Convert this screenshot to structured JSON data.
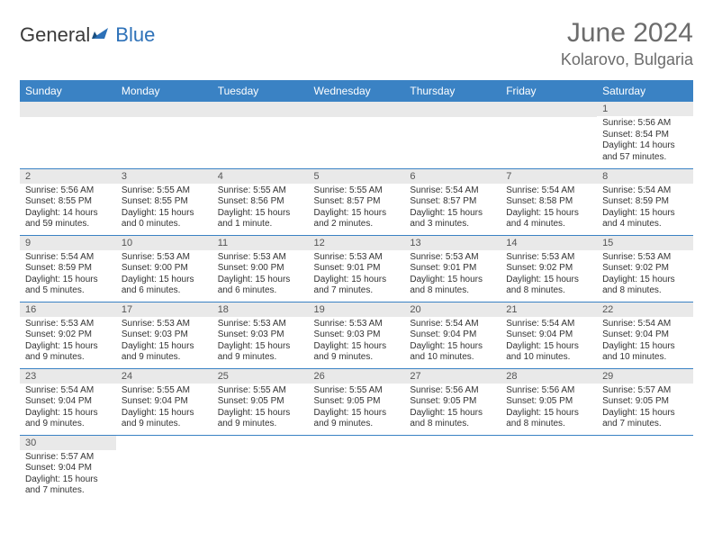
{
  "brand": {
    "part1": "General",
    "part2": "Blue"
  },
  "title": "June 2024",
  "location": "Kolarovo, Bulgaria",
  "colors": {
    "header_bg": "#3a82c4",
    "header_fg": "#ffffff",
    "daynum_bg": "#e9e9e9",
    "border": "#3a82c4",
    "title_color": "#6c6c6c",
    "logo_blue": "#2d71b8"
  },
  "weekdays": [
    "Sunday",
    "Monday",
    "Tuesday",
    "Wednesday",
    "Thursday",
    "Friday",
    "Saturday"
  ],
  "weeks": [
    [
      {
        "n": "",
        "sr": "",
        "ss": "",
        "dl": ""
      },
      {
        "n": "",
        "sr": "",
        "ss": "",
        "dl": ""
      },
      {
        "n": "",
        "sr": "",
        "ss": "",
        "dl": ""
      },
      {
        "n": "",
        "sr": "",
        "ss": "",
        "dl": ""
      },
      {
        "n": "",
        "sr": "",
        "ss": "",
        "dl": ""
      },
      {
        "n": "",
        "sr": "",
        "ss": "",
        "dl": ""
      },
      {
        "n": "1",
        "sr": "Sunrise: 5:56 AM",
        "ss": "Sunset: 8:54 PM",
        "dl": "Daylight: 14 hours and 57 minutes."
      }
    ],
    [
      {
        "n": "2",
        "sr": "Sunrise: 5:56 AM",
        "ss": "Sunset: 8:55 PM",
        "dl": "Daylight: 14 hours and 59 minutes."
      },
      {
        "n": "3",
        "sr": "Sunrise: 5:55 AM",
        "ss": "Sunset: 8:55 PM",
        "dl": "Daylight: 15 hours and 0 minutes."
      },
      {
        "n": "4",
        "sr": "Sunrise: 5:55 AM",
        "ss": "Sunset: 8:56 PM",
        "dl": "Daylight: 15 hours and 1 minute."
      },
      {
        "n": "5",
        "sr": "Sunrise: 5:55 AM",
        "ss": "Sunset: 8:57 PM",
        "dl": "Daylight: 15 hours and 2 minutes."
      },
      {
        "n": "6",
        "sr": "Sunrise: 5:54 AM",
        "ss": "Sunset: 8:57 PM",
        "dl": "Daylight: 15 hours and 3 minutes."
      },
      {
        "n": "7",
        "sr": "Sunrise: 5:54 AM",
        "ss": "Sunset: 8:58 PM",
        "dl": "Daylight: 15 hours and 4 minutes."
      },
      {
        "n": "8",
        "sr": "Sunrise: 5:54 AM",
        "ss": "Sunset: 8:59 PM",
        "dl": "Daylight: 15 hours and 4 minutes."
      }
    ],
    [
      {
        "n": "9",
        "sr": "Sunrise: 5:54 AM",
        "ss": "Sunset: 8:59 PM",
        "dl": "Daylight: 15 hours and 5 minutes."
      },
      {
        "n": "10",
        "sr": "Sunrise: 5:53 AM",
        "ss": "Sunset: 9:00 PM",
        "dl": "Daylight: 15 hours and 6 minutes."
      },
      {
        "n": "11",
        "sr": "Sunrise: 5:53 AM",
        "ss": "Sunset: 9:00 PM",
        "dl": "Daylight: 15 hours and 6 minutes."
      },
      {
        "n": "12",
        "sr": "Sunrise: 5:53 AM",
        "ss": "Sunset: 9:01 PM",
        "dl": "Daylight: 15 hours and 7 minutes."
      },
      {
        "n": "13",
        "sr": "Sunrise: 5:53 AM",
        "ss": "Sunset: 9:01 PM",
        "dl": "Daylight: 15 hours and 8 minutes."
      },
      {
        "n": "14",
        "sr": "Sunrise: 5:53 AM",
        "ss": "Sunset: 9:02 PM",
        "dl": "Daylight: 15 hours and 8 minutes."
      },
      {
        "n": "15",
        "sr": "Sunrise: 5:53 AM",
        "ss": "Sunset: 9:02 PM",
        "dl": "Daylight: 15 hours and 8 minutes."
      }
    ],
    [
      {
        "n": "16",
        "sr": "Sunrise: 5:53 AM",
        "ss": "Sunset: 9:02 PM",
        "dl": "Daylight: 15 hours and 9 minutes."
      },
      {
        "n": "17",
        "sr": "Sunrise: 5:53 AM",
        "ss": "Sunset: 9:03 PM",
        "dl": "Daylight: 15 hours and 9 minutes."
      },
      {
        "n": "18",
        "sr": "Sunrise: 5:53 AM",
        "ss": "Sunset: 9:03 PM",
        "dl": "Daylight: 15 hours and 9 minutes."
      },
      {
        "n": "19",
        "sr": "Sunrise: 5:53 AM",
        "ss": "Sunset: 9:03 PM",
        "dl": "Daylight: 15 hours and 9 minutes."
      },
      {
        "n": "20",
        "sr": "Sunrise: 5:54 AM",
        "ss": "Sunset: 9:04 PM",
        "dl": "Daylight: 15 hours and 10 minutes."
      },
      {
        "n": "21",
        "sr": "Sunrise: 5:54 AM",
        "ss": "Sunset: 9:04 PM",
        "dl": "Daylight: 15 hours and 10 minutes."
      },
      {
        "n": "22",
        "sr": "Sunrise: 5:54 AM",
        "ss": "Sunset: 9:04 PM",
        "dl": "Daylight: 15 hours and 10 minutes."
      }
    ],
    [
      {
        "n": "23",
        "sr": "Sunrise: 5:54 AM",
        "ss": "Sunset: 9:04 PM",
        "dl": "Daylight: 15 hours and 9 minutes."
      },
      {
        "n": "24",
        "sr": "Sunrise: 5:55 AM",
        "ss": "Sunset: 9:04 PM",
        "dl": "Daylight: 15 hours and 9 minutes."
      },
      {
        "n": "25",
        "sr": "Sunrise: 5:55 AM",
        "ss": "Sunset: 9:05 PM",
        "dl": "Daylight: 15 hours and 9 minutes."
      },
      {
        "n": "26",
        "sr": "Sunrise: 5:55 AM",
        "ss": "Sunset: 9:05 PM",
        "dl": "Daylight: 15 hours and 9 minutes."
      },
      {
        "n": "27",
        "sr": "Sunrise: 5:56 AM",
        "ss": "Sunset: 9:05 PM",
        "dl": "Daylight: 15 hours and 8 minutes."
      },
      {
        "n": "28",
        "sr": "Sunrise: 5:56 AM",
        "ss": "Sunset: 9:05 PM",
        "dl": "Daylight: 15 hours and 8 minutes."
      },
      {
        "n": "29",
        "sr": "Sunrise: 5:57 AM",
        "ss": "Sunset: 9:05 PM",
        "dl": "Daylight: 15 hours and 7 minutes."
      }
    ],
    [
      {
        "n": "30",
        "sr": "Sunrise: 5:57 AM",
        "ss": "Sunset: 9:04 PM",
        "dl": "Daylight: 15 hours and 7 minutes."
      },
      {
        "n": "",
        "sr": "",
        "ss": "",
        "dl": ""
      },
      {
        "n": "",
        "sr": "",
        "ss": "",
        "dl": ""
      },
      {
        "n": "",
        "sr": "",
        "ss": "",
        "dl": ""
      },
      {
        "n": "",
        "sr": "",
        "ss": "",
        "dl": ""
      },
      {
        "n": "",
        "sr": "",
        "ss": "",
        "dl": ""
      },
      {
        "n": "",
        "sr": "",
        "ss": "",
        "dl": ""
      }
    ]
  ]
}
